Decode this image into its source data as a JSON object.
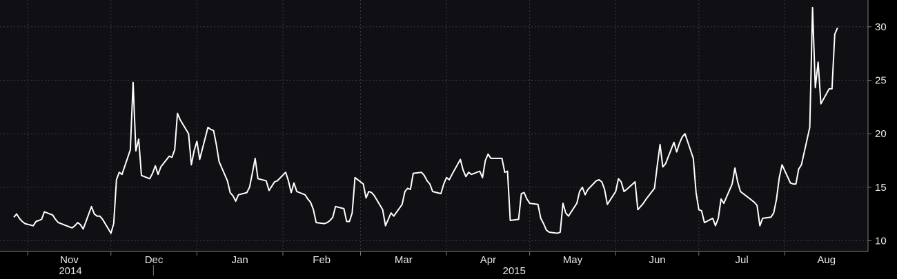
{
  "chart_data": {
    "type": "line",
    "title": "",
    "xlabel": "",
    "ylabel": "",
    "ylim": [
      9,
      32.5
    ],
    "yticks": [
      "10",
      "15",
      "20",
      "25",
      "30"
    ],
    "ytick_values": [
      10,
      15,
      20,
      25,
      30
    ],
    "month_labels": [
      "Nov",
      "Dec",
      "Jan",
      "Feb",
      "Mar",
      "Apr",
      "May",
      "Jun",
      "Jul",
      "Aug"
    ],
    "year_labels": [
      "2014",
      "2015"
    ],
    "x_start": "2014-10-27",
    "grid": true,
    "line_color": "#ffffff",
    "background_color": "#101014",
    "series": [
      {
        "name": "",
        "values": [
          12.2,
          12.5,
          12.1,
          11.8,
          11.6,
          11.4,
          11.8,
          11.9,
          12.0,
          12.7,
          12.4,
          12.0,
          11.7,
          11.6,
          11.5,
          11.2,
          11.4,
          11.7,
          11.5,
          11.1,
          13.2,
          12.5,
          12.3,
          12.3,
          12.0,
          10.7,
          11.6,
          15.7,
          16.4,
          16.2,
          18.5,
          24.8,
          18.4,
          19.5,
          16.1,
          15.8,
          16.3,
          17.0,
          16.2,
          16.9,
          17.9,
          17.8,
          18.5,
          21.9,
          21.3,
          20.0,
          17.1,
          18.4,
          19.3,
          17.6,
          20.6,
          20.4,
          20.3,
          19.0,
          17.4,
          15.6,
          14.5,
          14.2,
          13.7,
          14.3,
          14.5,
          15.0,
          16.3,
          17.7,
          15.8,
          15.6,
          14.7,
          15.1,
          15.5,
          15.6,
          16.4,
          15.6,
          14.5,
          15.4,
          14.6,
          14.3,
          13.9,
          13.6,
          12.9,
          11.7,
          11.6,
          11.7,
          11.9,
          12.2,
          13.2,
          13.0,
          11.8,
          11.8,
          12.6,
          15.9,
          15.3,
          14.0,
          14.6,
          14.5,
          14.2,
          12.9,
          11.4,
          12.0,
          12.6,
          12.3,
          13.4,
          14.6,
          14.9,
          14.8,
          16.3,
          16.4,
          16.1,
          15.6,
          15.3,
          14.6,
          14.4,
          15.3,
          15.9,
          15.7,
          16.2,
          17.6,
          16.6,
          16.0,
          16.4,
          16.2,
          16.5,
          15.9,
          17.5,
          18.1,
          17.7,
          17.7,
          17.7,
          16.4,
          16.5,
          11.9,
          12.0,
          14.4,
          14.5,
          13.9,
          13.5,
          13.4,
          12.1,
          11.6,
          11.0,
          10.8,
          10.7,
          10.8,
          13.5,
          12.6,
          12.3,
          13.5,
          14.6,
          15.0,
          14.3,
          14.8,
          15.6,
          15.7,
          15.5,
          14.8,
          13.4,
          14.6,
          15.8,
          15.5,
          14.6,
          14.8,
          15.5,
          12.9,
          13.2,
          13.5,
          13.9,
          14.9,
          17.0,
          19.0,
          16.9,
          17.2,
          19.2,
          18.3,
          19.1,
          19.7,
          20.0,
          17.7,
          14.5,
          12.9,
          12.8,
          11.7,
          12.1,
          11.4,
          12.1,
          13.9,
          13.5,
          15.3,
          16.8,
          15.5,
          14.6,
          14.4,
          13.8,
          13.6,
          13.3,
          11.4,
          12.1,
          12.2,
          12.6,
          13.9,
          15.9,
          17.1,
          15.4,
          15.3,
          15.3,
          16.7,
          17.1,
          20.6,
          31.8,
          24.3,
          26.7,
          22.8,
          24.2,
          24.2,
          29.3,
          29.9
        ]
      }
    ]
  }
}
